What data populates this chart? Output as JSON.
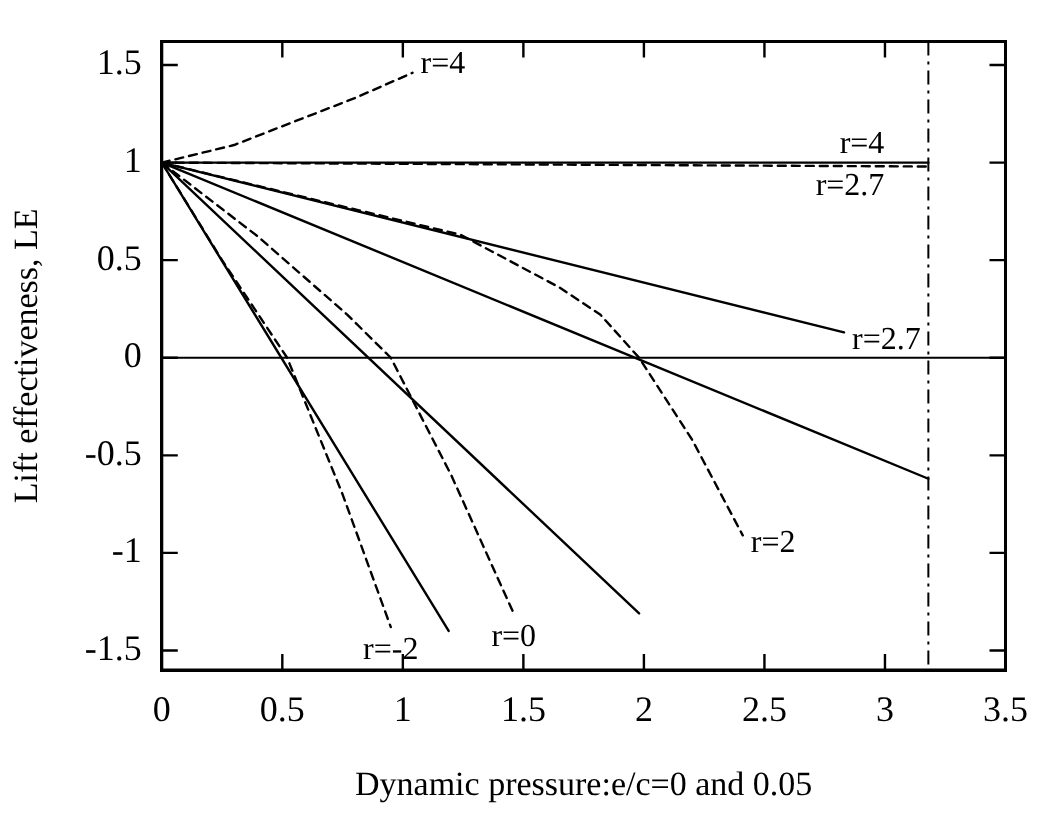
{
  "chart_data": {
    "type": "line",
    "xlabel": "Dynamic pressure:e/c=0 and 0.05",
    "ylabel": "Lift effectiveness, LE",
    "xlim": [
      0,
      3.5
    ],
    "ylim": [
      -1.6,
      1.62
    ],
    "xticks": [
      0,
      0.5,
      1,
      1.5,
      2,
      2.5,
      3,
      3.5
    ],
    "yticks": [
      -1.5,
      -1,
      -0.5,
      0,
      0.5,
      1,
      1.5
    ],
    "grid": false,
    "legend": false,
    "marker": "none",
    "series": [
      {
        "color": "#000000",
        "line_style": "dashed",
        "x": [
          0,
          0.3,
          0.57,
          0.8,
          1.04
        ],
        "values": [
          1,
          1.09,
          1.22,
          1.33,
          1.46
        ]
      },
      {
        "color": "#000000",
        "line_style": "solid",
        "x": [
          0,
          3.18
        ],
        "values": [
          1,
          1
        ]
      },
      {
        "color": "#000000",
        "line_style": "dashed",
        "x": [
          0,
          3.18
        ],
        "values": [
          1,
          0.98
        ]
      },
      {
        "color": "#000000",
        "line_style": "solid",
        "x": [
          0,
          2.83
        ],
        "values": [
          1,
          0.13
        ]
      },
      {
        "color": "#000000",
        "line_style": "dashed",
        "x": [
          0,
          0.6,
          1.24,
          1.65,
          1.82,
          1.98,
          2.2,
          2.41
        ],
        "values": [
          1,
          0.82,
          0.63,
          0.36,
          0.22,
          0,
          -0.42,
          -0.91
        ]
      },
      {
        "color": "#000000",
        "line_style": "solid",
        "x": [
          0,
          3.18
        ],
        "values": [
          1,
          -0.62
        ]
      },
      {
        "color": "#000000",
        "line_style": "solid",
        "x": [
          0,
          1.98
        ],
        "values": [
          1,
          -1.31
        ]
      },
      {
        "color": "#000000",
        "line_style": "dashed",
        "x": [
          0,
          0.4,
          0.77,
          0.95,
          1.2,
          1.46
        ],
        "values": [
          1,
          0.62,
          0.22,
          0,
          -0.6,
          -1.31
        ]
      },
      {
        "color": "#000000",
        "line_style": "solid",
        "x": [
          0,
          1.19
        ],
        "values": [
          1,
          -1.4
        ]
      },
      {
        "color": "#000000",
        "line_style": "dashed",
        "x": [
          0,
          0.25,
          0.52,
          0.75,
          0.95
        ],
        "values": [
          1,
          0.5,
          0,
          -0.7,
          -1.38
        ]
      }
    ],
    "ref_lines": [
      {
        "axis": "y",
        "value": 0,
        "color": "#000000",
        "line_style": "solid"
      },
      {
        "axis": "x",
        "value": 3.18,
        "color": "#000000",
        "line_style": "dashed"
      }
    ],
    "annotations": [
      {
        "text": "r=4",
        "x": 1.04,
        "y": 1.46
      },
      {
        "text": "r=4",
        "x": 3.18,
        "y": 1
      },
      {
        "text": "r=2.7",
        "x": 3.18,
        "y": 0.98
      },
      {
        "text": "r=2.7",
        "x": 2.83,
        "y": 0.13
      },
      {
        "text": "r=2",
        "x": 2.41,
        "y": -0.91
      },
      {
        "text": "r=0",
        "x": 1.46,
        "y": -1.31
      },
      {
        "text": "r=-2",
        "x": 0.95,
        "y": -1.38
      }
    ]
  }
}
